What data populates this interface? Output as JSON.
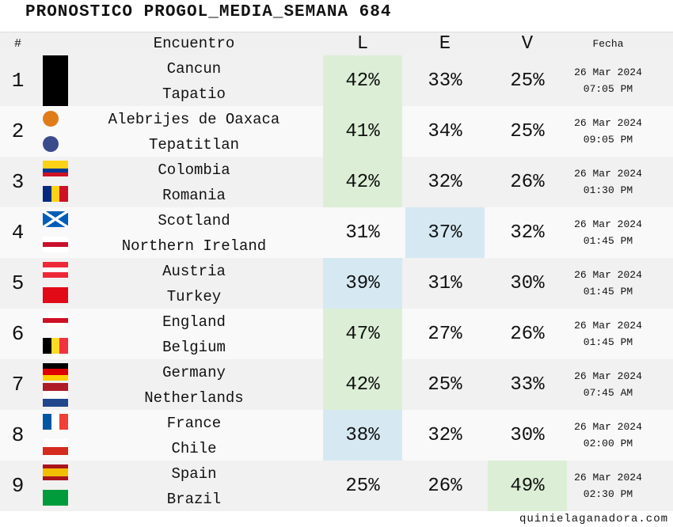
{
  "header": {
    "title": "PRONOSTICO PROGOL_MEDIA_SEMANA 684"
  },
  "columns": {
    "num": "#",
    "match": "Encuentro",
    "l": "L",
    "e": "E",
    "v": "V",
    "date": "Fecha"
  },
  "table": {
    "rows": [
      {
        "num": "1",
        "home": "Cancun",
        "away": "Tapatio",
        "l": "42%",
        "e": "33%",
        "v": "25%",
        "date": "26 Mar 2024",
        "time": "07:05 PM",
        "highlight": "l",
        "highlight_color": "#dcefd6"
      },
      {
        "num": "2",
        "home": "Alebrijes de Oaxaca",
        "away": "Tepatitlan",
        "l": "41%",
        "e": "34%",
        "v": "25%",
        "date": "26 Mar 2024",
        "time": "09:05 PM",
        "highlight": "l",
        "highlight_color": "#dcefd6"
      },
      {
        "num": "3",
        "home": "Colombia",
        "away": "Romania",
        "l": "42%",
        "e": "32%",
        "v": "26%",
        "date": "26 Mar 2024",
        "time": "01:30 PM",
        "highlight": "l",
        "highlight_color": "#dcefd6"
      },
      {
        "num": "4",
        "home": "Scotland",
        "away": "Northern Ireland",
        "l": "31%",
        "e": "37%",
        "v": "32%",
        "date": "26 Mar 2024",
        "time": "01:45 PM",
        "highlight": "e",
        "highlight_color": "#d6e9f3"
      },
      {
        "num": "5",
        "home": "Austria",
        "away": "Turkey",
        "l": "39%",
        "e": "31%",
        "v": "30%",
        "date": "26 Mar 2024",
        "time": "01:45 PM",
        "highlight": "l",
        "highlight_color": "#d6e9f3"
      },
      {
        "num": "6",
        "home": "England",
        "away": "Belgium",
        "l": "47%",
        "e": "27%",
        "v": "26%",
        "date": "26 Mar 2024",
        "time": "01:45 PM",
        "highlight": "l",
        "highlight_color": "#dcefd6"
      },
      {
        "num": "7",
        "home": "Germany",
        "away": "Netherlands",
        "l": "42%",
        "e": "25%",
        "v": "33%",
        "date": "26 Mar 2024",
        "time": "07:45 AM",
        "highlight": "l",
        "highlight_color": "#dcefd6"
      },
      {
        "num": "8",
        "home": "France",
        "away": "Chile",
        "l": "38%",
        "e": "32%",
        "v": "30%",
        "date": "26 Mar 2024",
        "time": "02:00 PM",
        "highlight": "l",
        "highlight_color": "#d6e9f3"
      },
      {
        "num": "9",
        "home": "Spain",
        "away": "Brazil",
        "l": "25%",
        "e": "26%",
        "v": "49%",
        "date": "26 Mar 2024",
        "time": "02:30 PM",
        "highlight": "v",
        "highlight_color": "#dcefd6"
      }
    ]
  },
  "footer": {
    "site": "quinielaganadora.com"
  }
}
